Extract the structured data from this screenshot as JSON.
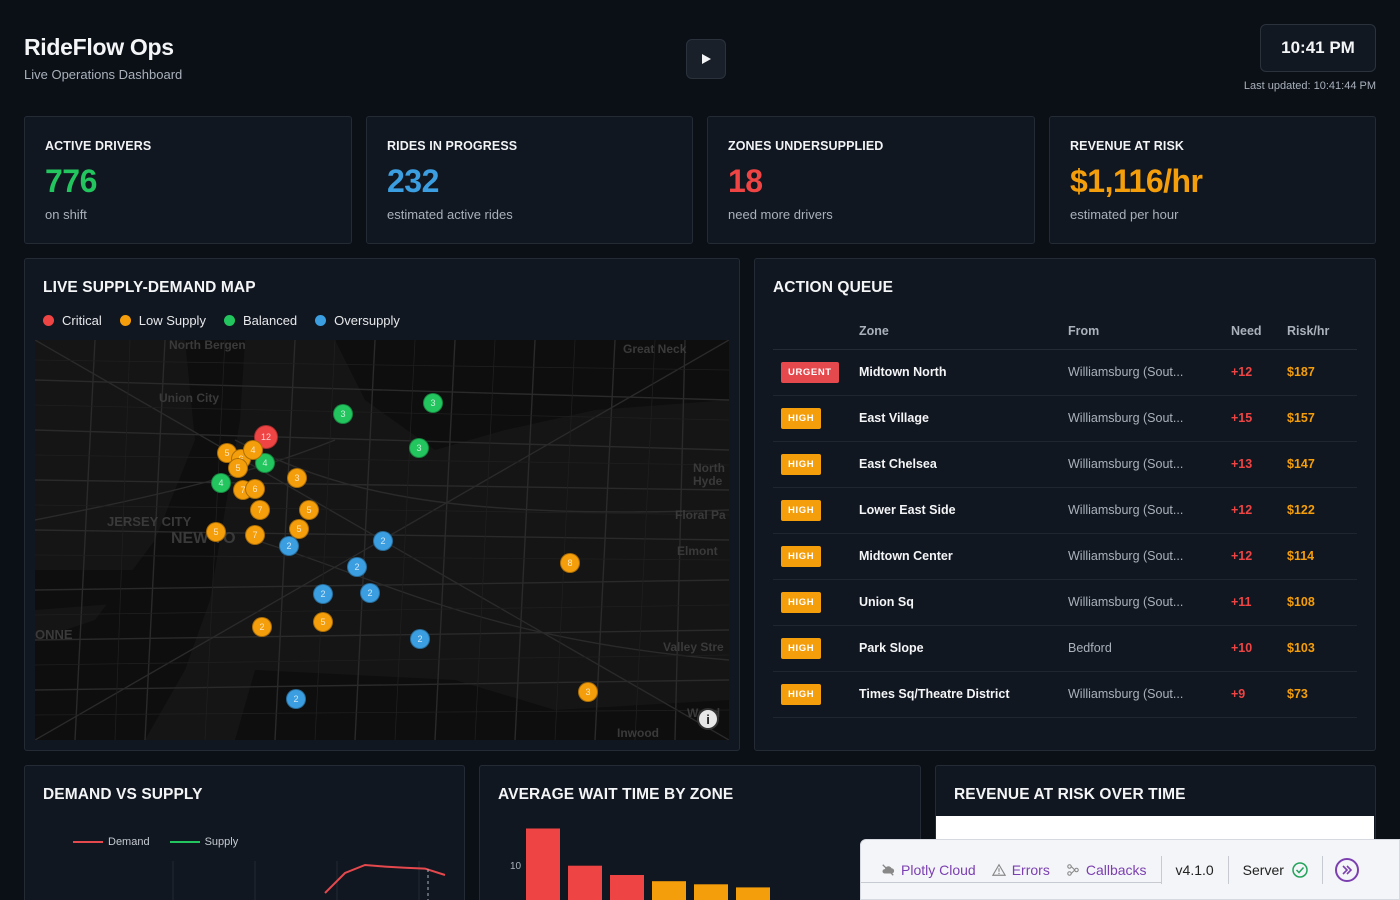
{
  "header": {
    "title": "RideFlow Ops",
    "subtitle": "Live Operations Dashboard",
    "clock": "10:41 PM",
    "last_updated": "Last updated: 10:41:44 PM"
  },
  "kpis": [
    {
      "label": "ACTIVE DRIVERS",
      "value": "776",
      "sub": "on shift",
      "color": "#22c55e"
    },
    {
      "label": "RIDES IN PROGRESS",
      "value": "232",
      "sub": "estimated active rides",
      "color": "#3b9ee0"
    },
    {
      "label": "ZONES UNDERSUPPLIED",
      "value": "18",
      "sub": "need more drivers",
      "color": "#ef4444"
    },
    {
      "label": "REVENUE AT RISK",
      "value": "$1,116/hr",
      "sub": "estimated per hour",
      "color": "#f59e0b"
    }
  ],
  "map": {
    "title": "LIVE SUPPLY-DEMAND MAP",
    "legend": [
      {
        "label": "Critical",
        "color": "#ef4444"
      },
      {
        "label": "Low Supply",
        "color": "#f59e0b"
      },
      {
        "label": "Balanced",
        "color": "#22c55e"
      },
      {
        "label": "Oversupply",
        "color": "#3b9ee0"
      }
    ],
    "place_labels": [
      "North Bergen",
      "Great Neck",
      "Union City",
      "North Hyde",
      "JERSEY CITY",
      "NEW YO",
      "Floral Pa",
      "Elmont",
      "ONNE",
      "Valley Stre",
      "Wood",
      "Inwood"
    ],
    "marker_labels": [
      "3",
      "3",
      "12",
      "5",
      "6",
      "4",
      "5",
      "4",
      "3",
      "3",
      "4",
      "7",
      "6",
      "5",
      "7",
      "5",
      "7",
      "5",
      "2",
      "2",
      "2",
      "2",
      "2",
      "8",
      "2",
      "5",
      "2",
      "2",
      "3"
    ]
  },
  "action_queue": {
    "title": "ACTION QUEUE",
    "columns": [
      "",
      "Zone",
      "From",
      "Need",
      "Risk/hr"
    ],
    "rows": [
      {
        "priority": "URGENT",
        "zone": "Midtown North",
        "from": "Williamsburg (Sout...",
        "need": "+12",
        "risk": "$187"
      },
      {
        "priority": "HIGH",
        "zone": "East Village",
        "from": "Williamsburg (Sout...",
        "need": "+15",
        "risk": "$157"
      },
      {
        "priority": "HIGH",
        "zone": "East Chelsea",
        "from": "Williamsburg (Sout...",
        "need": "+13",
        "risk": "$147"
      },
      {
        "priority": "HIGH",
        "zone": "Lower East Side",
        "from": "Williamsburg (Sout...",
        "need": "+12",
        "risk": "$122"
      },
      {
        "priority": "HIGH",
        "zone": "Midtown Center",
        "from": "Williamsburg (Sout...",
        "need": "+12",
        "risk": "$114"
      },
      {
        "priority": "HIGH",
        "zone": "Union Sq",
        "from": "Williamsburg (Sout...",
        "need": "+11",
        "risk": "$108"
      },
      {
        "priority": "HIGH",
        "zone": "Park Slope",
        "from": "Bedford",
        "need": "+10",
        "risk": "$103"
      },
      {
        "priority": "HIGH",
        "zone": "Times Sq/Theatre District",
        "from": "Williamsburg (Sout...",
        "need": "+9",
        "risk": "$73"
      }
    ]
  },
  "demand_chart": {
    "title": "DEMAND VS SUPPLY",
    "legend": [
      {
        "name": "Demand",
        "color": "#e5484d"
      },
      {
        "name": "Supply",
        "color": "#22c55e"
      }
    ]
  },
  "wait_chart": {
    "title": "AVERAGE WAIT TIME BY ZONE",
    "y_tick": "10"
  },
  "revenue_chart": {
    "title": "REVENUE AT RISK OVER TIME"
  },
  "devbar": {
    "plotly_cloud": "Plotly Cloud",
    "errors": "Errors",
    "callbacks": "Callbacks",
    "version": "v4.1.0",
    "server": "Server"
  },
  "chart_data": [
    {
      "type": "line",
      "title": "DEMAND VS SUPPLY",
      "series": [
        {
          "name": "Demand",
          "values": [
            2,
            7,
            9,
            8.6,
            8.3,
            8.1,
            6.5
          ]
        },
        {
          "name": "Supply",
          "values": []
        }
      ]
    },
    {
      "type": "bar",
      "title": "AVERAGE WAIT TIME BY ZONE",
      "values": [
        12.5,
        6.5,
        5,
        4,
        3.5,
        3
      ],
      "colors": [
        "#ef4444",
        "#ef4444",
        "#ef4444",
        "#f59e0b",
        "#f59e0b",
        "#f59e0b"
      ]
    }
  ]
}
